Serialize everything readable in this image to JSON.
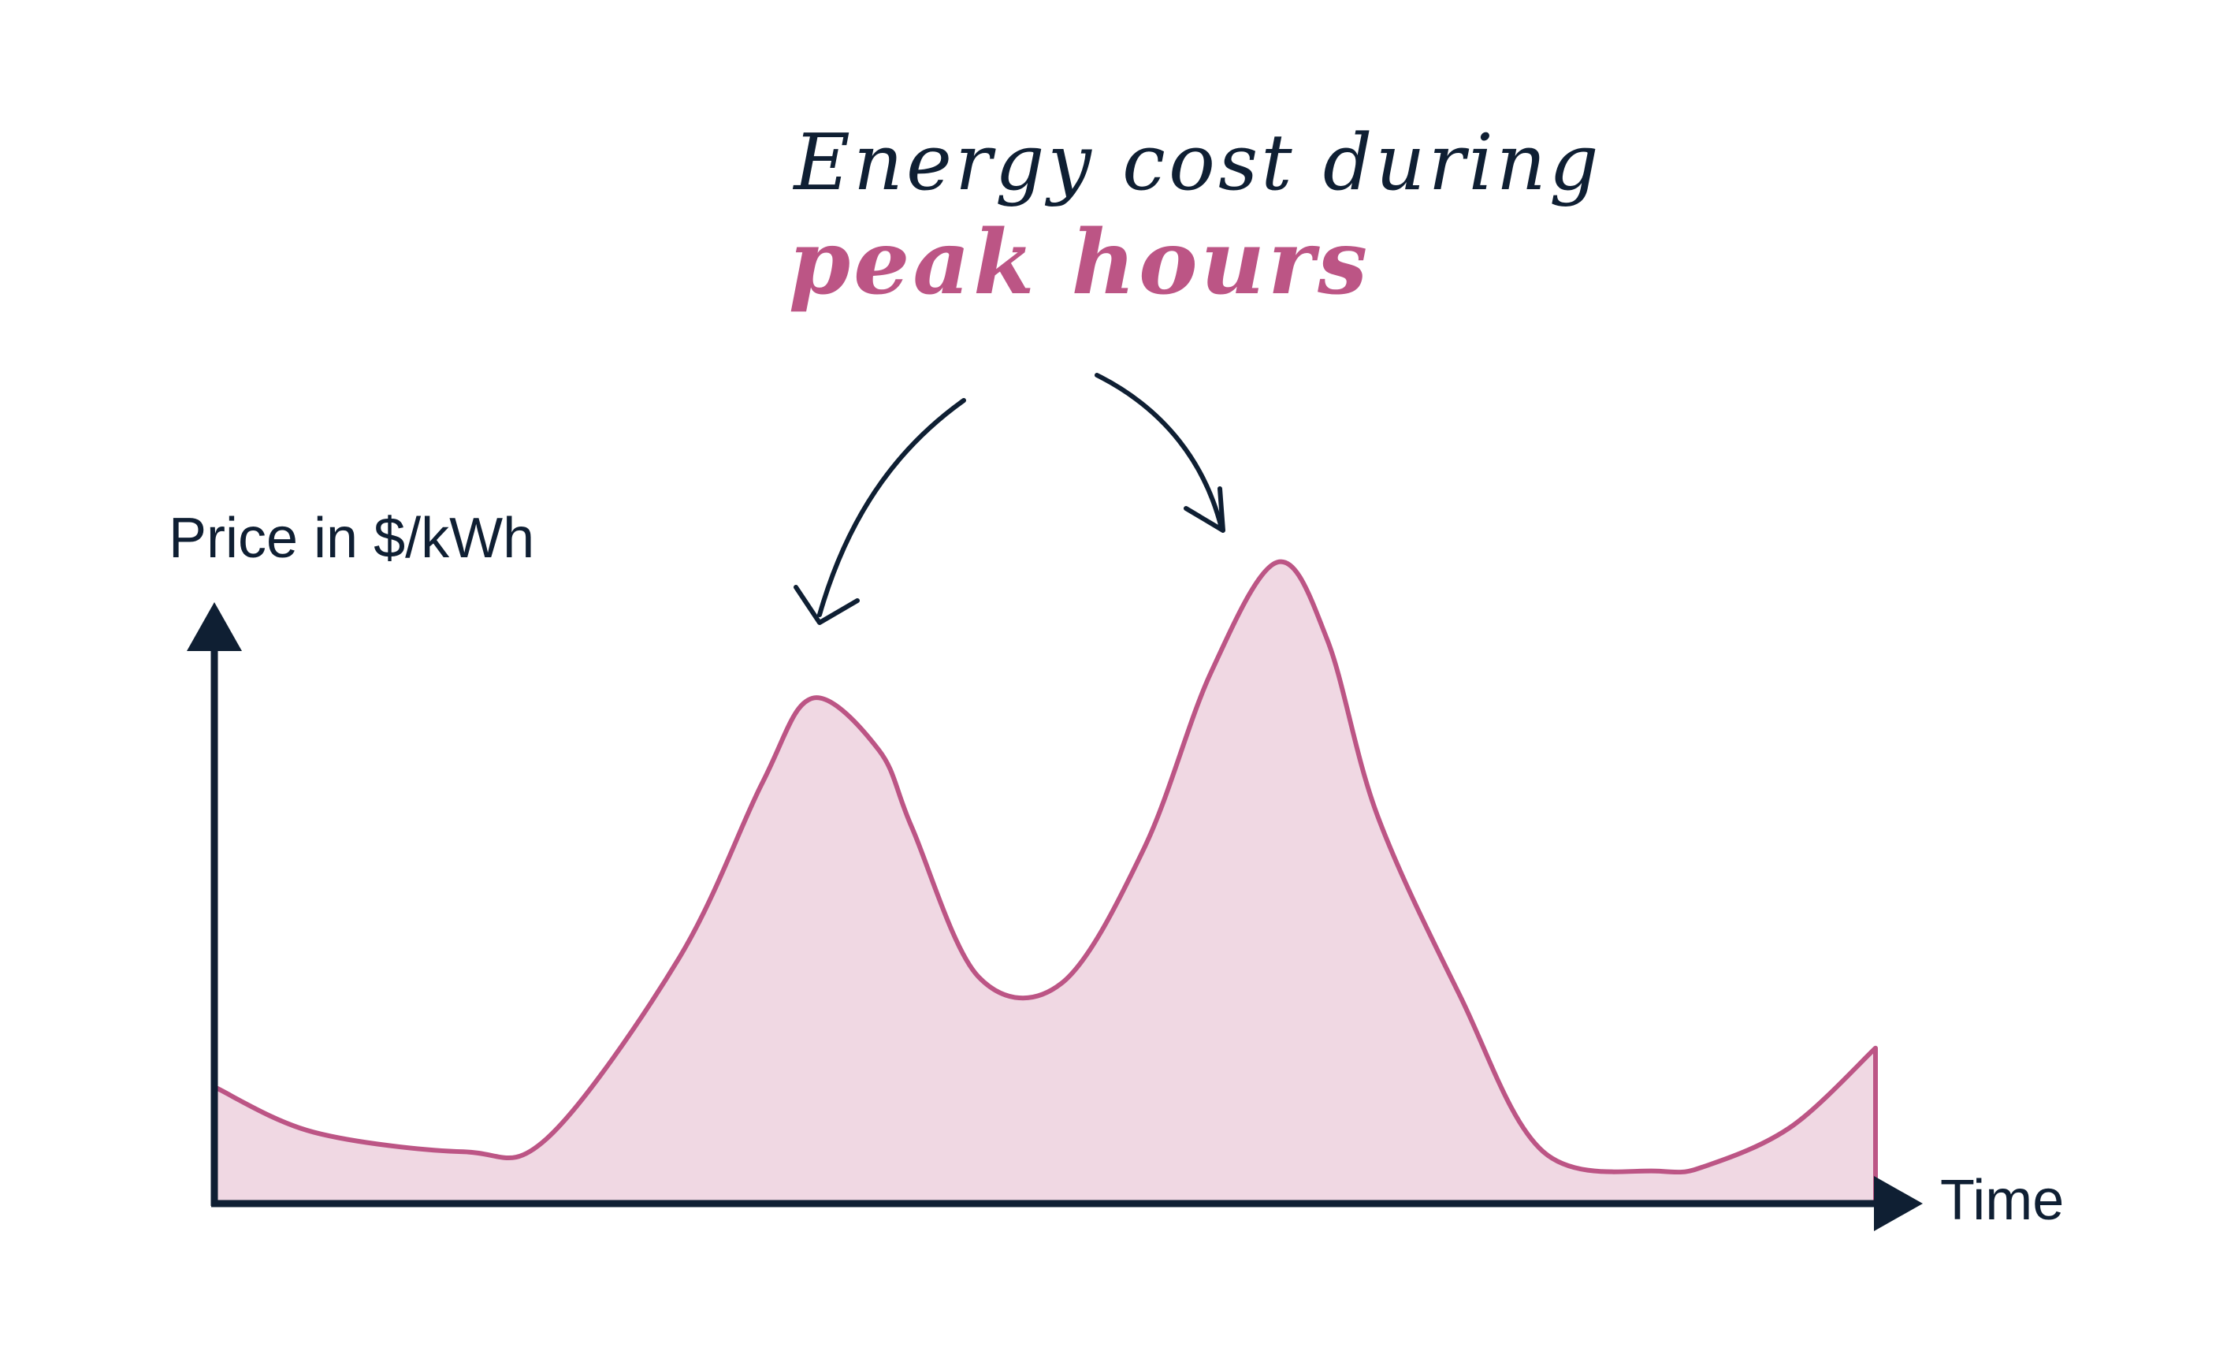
{
  "title": {
    "line1": "Energy cost during",
    "line2": "peak hours"
  },
  "colors": {
    "ink": "#0f1f33",
    "accent": "#bc5585",
    "fill": "#f0d8e3"
  },
  "chart_data": {
    "type": "area",
    "xlabel": "Time",
    "ylabel": "Price in $/kWh",
    "xlim": [
      0,
      100
    ],
    "ylim": [
      0,
      100
    ],
    "grid": false,
    "note": "Axes carry no ticks; values are relative positions",
    "series": [
      {
        "x": [
          0,
          6,
          15,
          20,
          28,
          33,
          36,
          40,
          42,
          46,
          51,
          56,
          60,
          64,
          67,
          70,
          75,
          80,
          87,
          90,
          95,
          100
        ],
        "y": [
          18,
          11,
          8,
          10,
          38,
          65,
          78,
          70,
          58,
          35,
          34,
          55,
          82,
          99,
          87,
          60,
          32,
          8,
          5,
          6,
          12,
          24
        ]
      }
    ]
  }
}
